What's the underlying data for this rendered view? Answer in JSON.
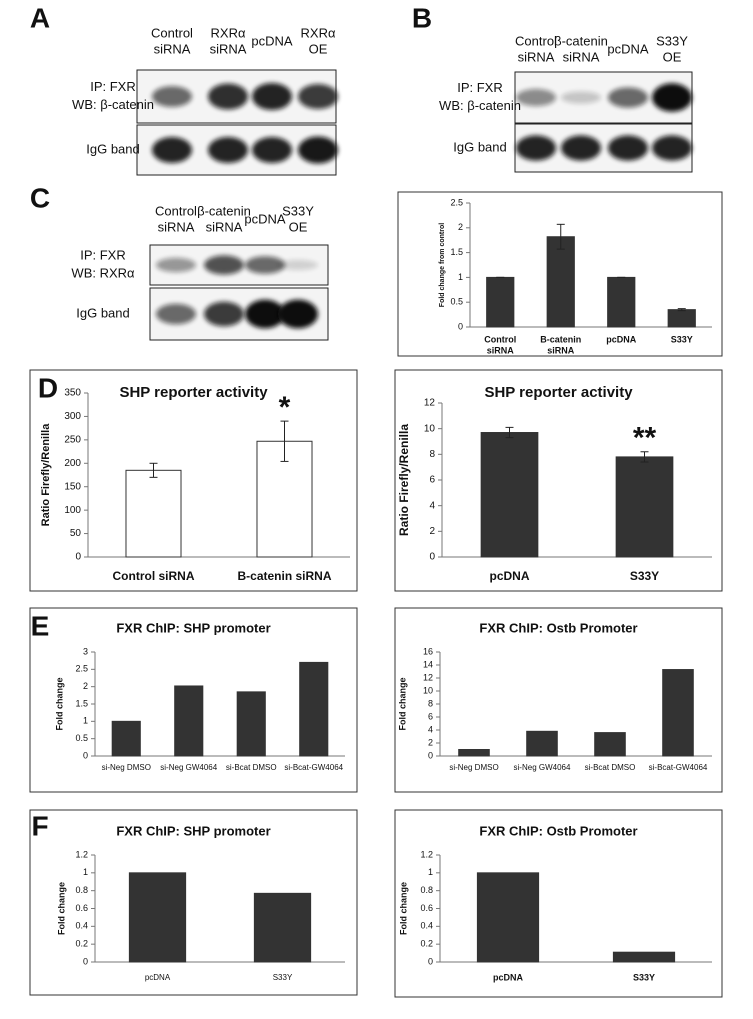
{
  "blots": [
    {
      "label": "A",
      "lanes": [
        [
          "Control",
          "siRNA"
        ],
        [
          "RXRα",
          "siRNA"
        ],
        [
          "pcDNA"
        ],
        [
          "RXRα",
          "OE"
        ]
      ],
      "rows": [
        [
          "IP: FXR",
          "WB: β-catenin"
        ],
        [
          "IgG band"
        ]
      ]
    },
    {
      "label": "B",
      "lanes": [
        [
          "Control",
          "siRNA"
        ],
        [
          "β-catenin",
          "siRNA"
        ],
        [
          "pcDNA"
        ],
        [
          "S33Y",
          "OE"
        ]
      ],
      "rows": [
        [
          "IP: FXR",
          "WB: β-catenin"
        ],
        [
          "IgG band"
        ]
      ]
    },
    {
      "label": "C",
      "lanes": [
        [
          "Control",
          "siRNA"
        ],
        [
          "β-catenin",
          "siRNA"
        ],
        [
          "pcDNA"
        ],
        [
          "S33Y",
          "OE"
        ]
      ],
      "rows": [
        [
          "IP: FXR",
          "WB: RXRα"
        ],
        [
          "IgG band"
        ]
      ]
    }
  ],
  "panel_labels": [
    "D",
    "E",
    "F"
  ],
  "chart_data": [
    {
      "type": "bar",
      "categories": [
        [
          "Control",
          "siRNA"
        ],
        [
          "B-catenin",
          "siRNA"
        ],
        [
          "pcDNA"
        ],
        [
          "S33Y"
        ]
      ],
      "values": [
        1,
        1.82,
        1,
        0.35
      ],
      "errors": [
        0,
        0.25,
        0,
        0.02
      ],
      "y_label": "Fold change from control",
      "ylim": [
        0,
        2.5
      ],
      "yticks": [
        0,
        0.5,
        1,
        1.5,
        2,
        2.5
      ],
      "color": "#333333"
    },
    {
      "type": "bar",
      "title": "SHP reporter activity",
      "categories": [
        "Control siRNA",
        "B-catenin siRNA"
      ],
      "values": [
        185,
        247
      ],
      "errors": [
        15,
        43
      ],
      "bar_annotations": [
        null,
        "*"
      ],
      "y_label": "Ratio Firefly/Renilla",
      "ylim": [
        0,
        350
      ],
      "yticks": [
        0,
        50,
        100,
        150,
        200,
        250,
        300,
        350
      ],
      "color": "#ffffff"
    },
    {
      "type": "bar",
      "title": "SHP reporter activity",
      "categories": [
        "pcDNA",
        "S33Y"
      ],
      "values": [
        9.7,
        7.8
      ],
      "errors": [
        0.4,
        0.4
      ],
      "bar_annotations": [
        null,
        "**"
      ],
      "y_label": "Ratio Firefly/Renilla",
      "ylim": [
        0,
        12
      ],
      "yticks": [
        0,
        2,
        4,
        6,
        8,
        10,
        12
      ],
      "color": "#333333"
    },
    {
      "type": "bar",
      "title": "FXR ChIP: SHP promoter",
      "categories": [
        "si-Neg DMSO",
        "si-Neg GW4064",
        "si-Bcat DMSO",
        "si-Bcat-GW4064"
      ],
      "values": [
        1,
        2.02,
        1.85,
        2.7
      ],
      "y_label": "Fold change",
      "ylim": [
        0,
        3
      ],
      "yticks": [
        0,
        0.5,
        1,
        1.5,
        2,
        2.5,
        3
      ],
      "color": "#333333"
    },
    {
      "type": "bar",
      "title": "FXR ChIP: Ostb Promoter",
      "categories": [
        "si-Neg DMSO",
        "si-Neg GW4064",
        "si-Bcat DMSO",
        "si-Bcat-GW4064"
      ],
      "values": [
        1,
        3.8,
        3.6,
        13.3
      ],
      "y_label": "Fold change",
      "ylim": [
        0,
        16
      ],
      "yticks": [
        0,
        2,
        4,
        6,
        8,
        10,
        12,
        14,
        16
      ],
      "color": "#333333"
    },
    {
      "type": "bar",
      "title": "FXR ChIP: SHP promoter",
      "categories": [
        "pcDNA",
        "S33Y"
      ],
      "values": [
        1,
        0.77
      ],
      "y_label": "Fold change",
      "ylim": [
        0,
        1.2
      ],
      "yticks": [
        0,
        0.2,
        0.4,
        0.6,
        0.8,
        1,
        1.2
      ],
      "color": "#333333"
    },
    {
      "type": "bar",
      "title": "FXR ChIP: Ostb Promoter",
      "categories": [
        "pcDNA",
        "S33Y"
      ],
      "values": [
        1,
        0.11
      ],
      "y_label": "Fold change",
      "ylim": [
        0,
        1.2
      ],
      "yticks": [
        0,
        0.2,
        0.4,
        0.6,
        0.8,
        1,
        1.2
      ],
      "color": "#333333"
    }
  ]
}
